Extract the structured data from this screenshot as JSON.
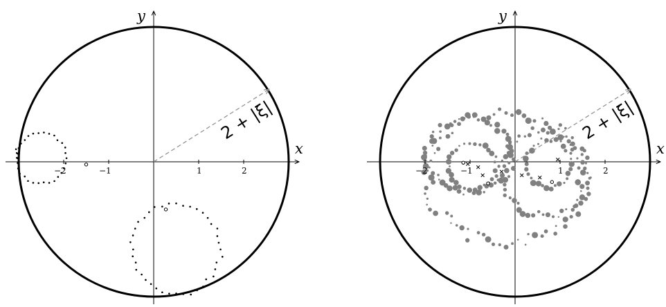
{
  "panels": [
    {
      "x_axis_label": "x",
      "y_axis_label": "y",
      "radius_label": "2 + |ξ|",
      "x_tick_labels": [
        "−2",
        "−1",
        "1",
        "2"
      ],
      "x_ticks": [
        -2,
        -1,
        1,
        2
      ],
      "circle_radius": 3.0,
      "outer_points": [
        [
          -2.98,
          0.38
        ],
        [
          -3.06,
          0.28
        ],
        [
          -3.02,
          0.18
        ],
        [
          -3.04,
          0.09
        ],
        [
          -3.02,
          -0.02
        ]
      ],
      "loops": [
        {
          "cx": -2.5,
          "cy": 0.08,
          "r": 0.56,
          "n": 30,
          "wobble": 0.05
        },
        {
          "cx": 0.5,
          "cy": -1.95,
          "r": 1.0,
          "n": 40,
          "wobble": 0.06
        }
      ],
      "open_points": [
        [
          -1.5,
          -0.06
        ],
        [
          0.27,
          -1.06
        ]
      ],
      "cross_points": []
    },
    {
      "x_axis_label": "x",
      "y_axis_label": "y",
      "radius_label": "2 + |ξ|",
      "x_tick_labels": [
        "−2",
        "−1",
        "1",
        "2"
      ],
      "x_ticks": [
        -2,
        -1,
        1,
        2
      ],
      "circle_radius": 3.0,
      "outer_points": [],
      "loops": [],
      "open_points": [
        [
          -1.15,
          -0.02
        ],
        [
          0.82,
          -0.45
        ],
        [
          -0.6,
          -0.48
        ]
      ],
      "cross_points": [
        [
          -1.05,
          -0.05
        ],
        [
          -0.82,
          -0.12
        ],
        [
          -0.3,
          -0.22
        ],
        [
          0.15,
          -0.3
        ],
        [
          0.55,
          -0.35
        ],
        [
          0.95,
          0.05
        ],
        [
          -0.72,
          -0.3
        ]
      ],
      "gray_rings": [
        {
          "cx": -1.0,
          "cy": 0.15,
          "rx": 0.95,
          "ry": 0.82,
          "n": 55,
          "seed": 3
        },
        {
          "cx": 0.65,
          "cy": -0.25,
          "rx": 0.95,
          "ry": 0.95,
          "n": 55,
          "seed": 7
        },
        {
          "cx": -0.95,
          "cy": -0.1,
          "rx": 0.55,
          "ry": 0.5,
          "n": 30,
          "seed": 11
        },
        {
          "cx": 0.75,
          "cy": -0.05,
          "rx": 0.5,
          "ry": 0.55,
          "n": 30,
          "seed": 13
        },
        {
          "cx": -0.2,
          "cy": -0.35,
          "rx": 1.75,
          "ry": 1.45,
          "n": 80,
          "seed": 17
        }
      ]
    }
  ],
  "colors": {
    "circle": "#000000",
    "points": "#000000",
    "gray_points": "#808080",
    "radius_arrow": "#8c8c8c"
  }
}
